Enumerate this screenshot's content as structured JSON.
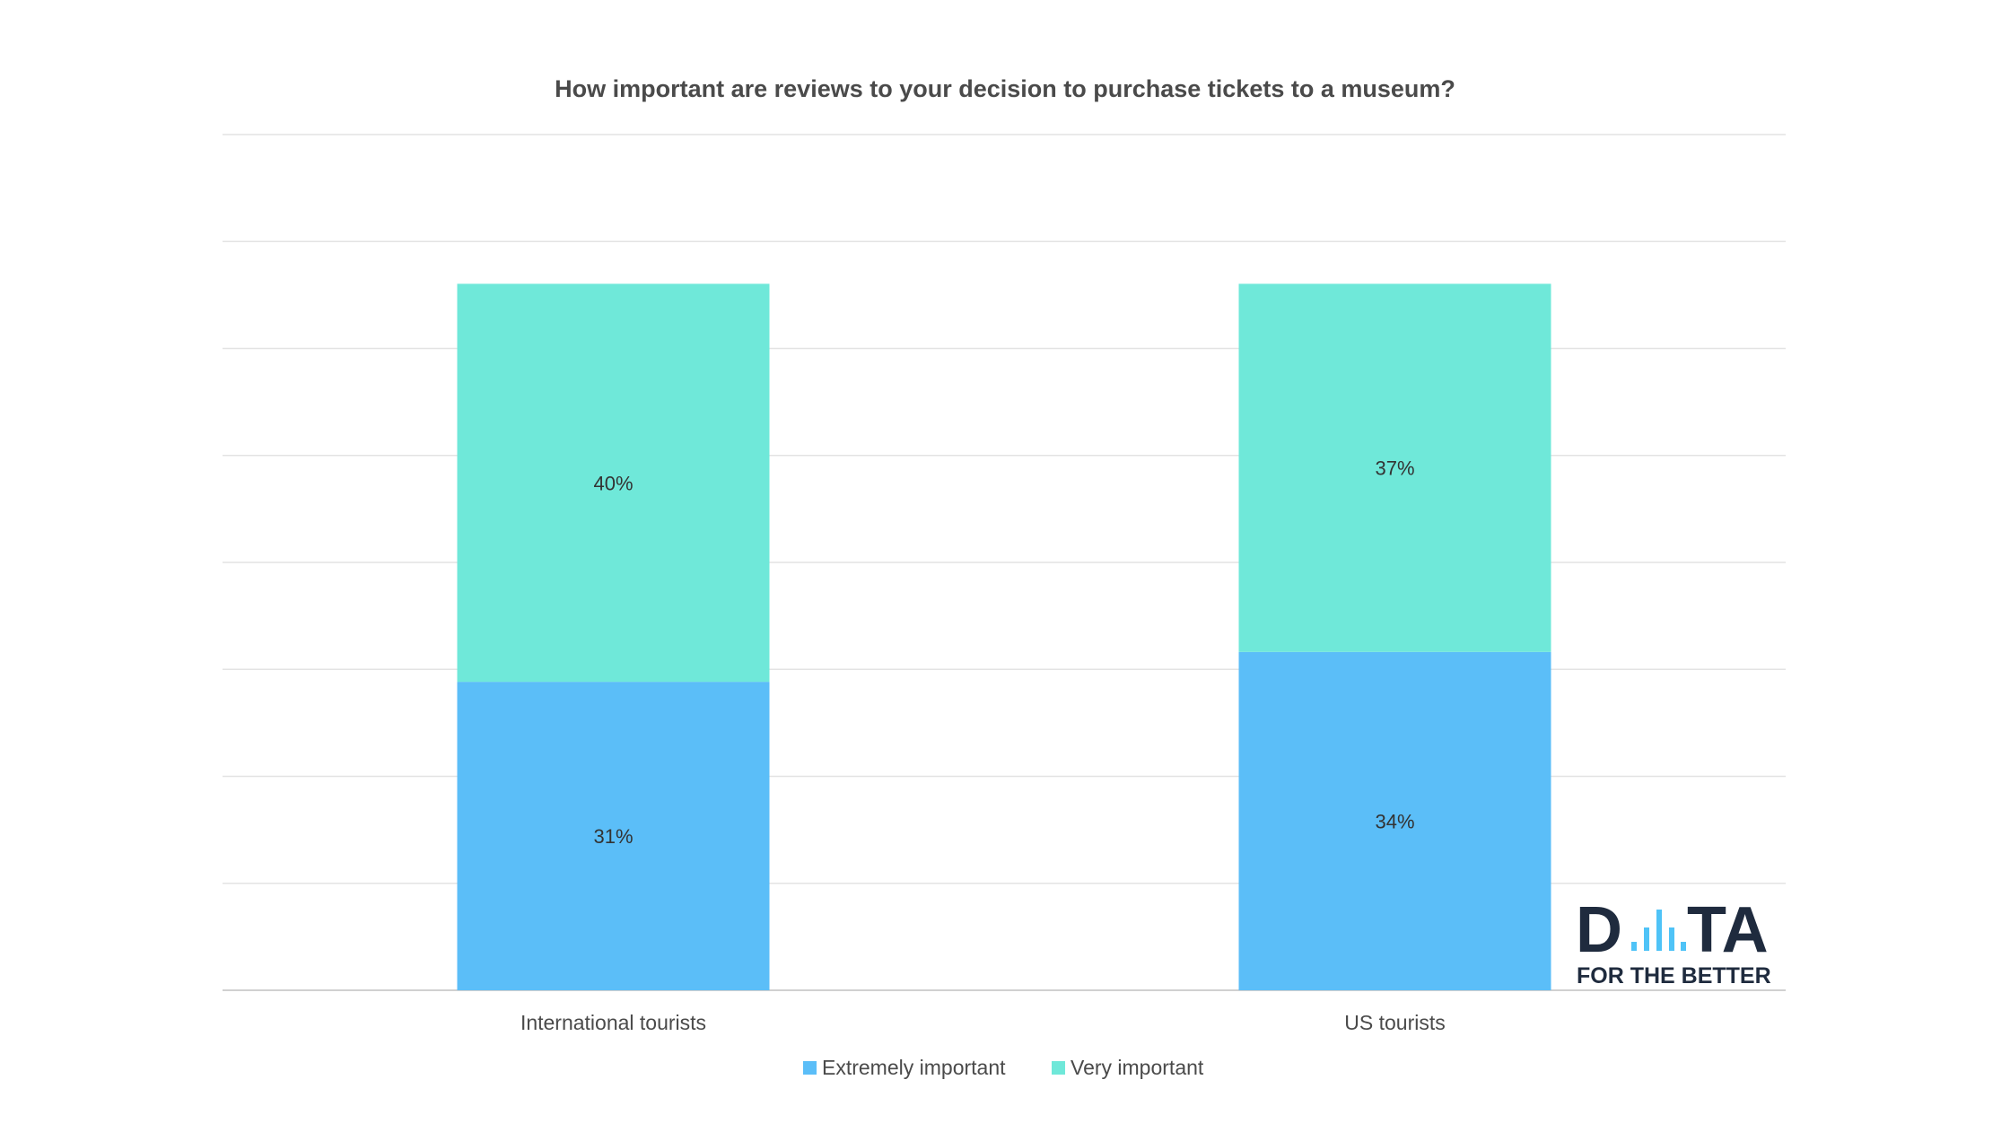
{
  "chart_data": {
    "type": "bar",
    "stacked": true,
    "title": "How important are reviews to your decision to purchase tickets to a museum?",
    "xlabel": "",
    "ylabel": "",
    "categories": [
      "International tourists",
      "US tourists"
    ],
    "series": [
      {
        "name": "Extremely important",
        "values": [
          31,
          34
        ],
        "labels": [
          "31%",
          "34%"
        ],
        "color": "#5bbef8"
      },
      {
        "name": "Very important",
        "values": [
          40,
          37
        ],
        "labels": [
          "40%",
          "37%"
        ],
        "color": "#6fe8d9"
      }
    ],
    "ylim": [
      0,
      86
    ],
    "grid": true,
    "axis_tick_labels_shown": false,
    "legend_position": "bottom"
  },
  "logo": {
    "line1_d": "D",
    "line1_ta": "TA",
    "line2": "FOR THE BETTER",
    "dark_color": "#1f2b3e",
    "bar_color": "#4fc3f7"
  }
}
